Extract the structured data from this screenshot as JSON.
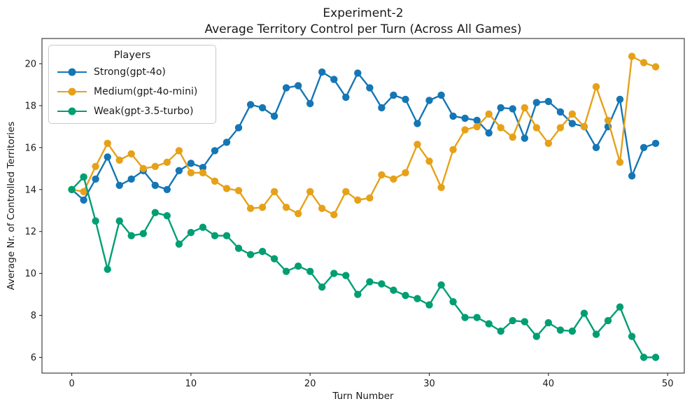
{
  "title": {
    "line1": "Experiment-2",
    "line2": "Average Territory Control per Turn (Across All Games)"
  },
  "legend": {
    "title": "Players"
  },
  "chart_data": {
    "type": "line",
    "title": "Experiment-2",
    "subtitle": "Average Territory Control per Turn (Across All Games)",
    "xlabel": "Turn Number",
    "ylabel": "Average Nr. of Controlled Territories",
    "grid": false,
    "legend_position": "upper left",
    "marker": "o",
    "xlim": [
      -2.5,
      51.4
    ],
    "ylim": [
      5.25,
      21.2
    ],
    "xticks": [
      0,
      10,
      20,
      30,
      40,
      50
    ],
    "yticks": [
      6,
      8,
      10,
      12,
      14,
      16,
      18,
      20
    ],
    "x": [
      0,
      1,
      2,
      3,
      4,
      5,
      6,
      7,
      8,
      9,
      10,
      11,
      12,
      13,
      14,
      15,
      16,
      17,
      18,
      19,
      20,
      21,
      22,
      23,
      24,
      25,
      26,
      27,
      28,
      29,
      30,
      31,
      32,
      33,
      34,
      35,
      36,
      37,
      38,
      39,
      40,
      41,
      42,
      43,
      44,
      45,
      46,
      47,
      48,
      49
    ],
    "series": [
      {
        "id": "strong",
        "name": "Strong(gpt-4o)",
        "color": "#1576b5",
        "values": [
          14.0,
          13.5,
          14.5,
          15.55,
          14.2,
          14.5,
          14.9,
          14.2,
          14.0,
          14.9,
          15.25,
          15.05,
          15.85,
          16.25,
          16.95,
          18.05,
          17.9,
          17.5,
          18.85,
          18.95,
          18.1,
          19.6,
          19.25,
          18.4,
          19.55,
          18.85,
          17.9,
          18.5,
          18.3,
          17.15,
          18.25,
          18.5,
          17.5,
          17.4,
          17.3,
          16.7,
          17.9,
          17.85,
          16.45,
          18.15,
          18.2,
          17.7,
          17.15,
          17.0,
          16.0,
          17.0,
          18.3,
          14.65,
          16.0,
          16.2
        ]
      },
      {
        "id": "medium",
        "name": "Medium(gpt-4o-mini)",
        "color": "#e6a118",
        "values": [
          14.0,
          13.9,
          15.1,
          16.2,
          15.4,
          15.7,
          15.0,
          15.1,
          15.3,
          15.85,
          14.8,
          14.8,
          14.4,
          14.05,
          13.95,
          13.1,
          13.15,
          13.9,
          13.15,
          12.85,
          13.9,
          13.1,
          12.8,
          13.9,
          13.5,
          13.6,
          14.7,
          14.5,
          14.8,
          16.15,
          15.35,
          14.1,
          15.9,
          16.85,
          17.0,
          17.6,
          16.95,
          16.5,
          17.9,
          16.95,
          16.2,
          16.95,
          17.6,
          17.0,
          18.9,
          17.3,
          15.3,
          20.35,
          20.05,
          19.85
        ]
      },
      {
        "id": "weak",
        "name": "Weak(gpt-3.5-turbo)",
        "color": "#009e73",
        "values": [
          14.0,
          14.6,
          12.5,
          10.2,
          12.5,
          11.8,
          11.9,
          12.9,
          12.75,
          11.4,
          11.95,
          12.2,
          11.8,
          11.8,
          11.2,
          10.9,
          11.05,
          10.7,
          10.1,
          10.35,
          10.1,
          9.35,
          10.0,
          9.9,
          9.0,
          9.6,
          9.5,
          9.2,
          8.95,
          8.8,
          8.5,
          9.45,
          8.65,
          7.9,
          7.9,
          7.6,
          7.25,
          7.75,
          7.7,
          7.0,
          7.65,
          7.3,
          7.25,
          8.1,
          7.1,
          7.75,
          8.4,
          7.0,
          6.0,
          6.0
        ]
      }
    ]
  }
}
